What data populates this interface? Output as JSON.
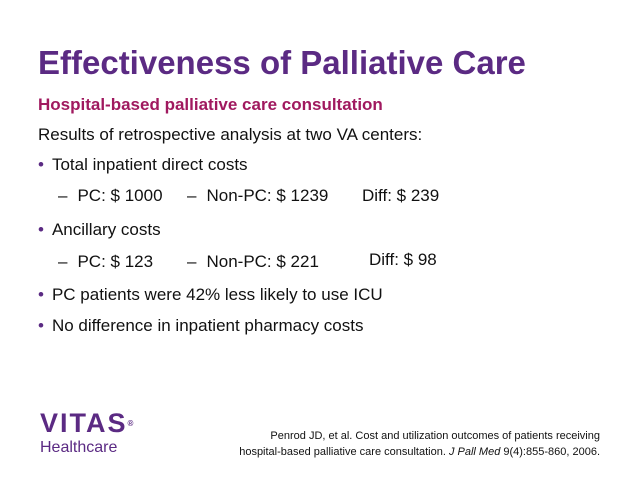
{
  "slide": {
    "title": "Effectiveness of Palliative Care",
    "subtitle": "Hospital-based palliative care consultation",
    "intro": "Results of retrospective analysis at two VA centers:",
    "bullet_marker": "•",
    "dash_marker": "–",
    "bullets": [
      {
        "text": "Total inpatient direct costs",
        "sub": {
          "pc": "PC: $ 1000",
          "nonpc": "Non-PC: $ 1239",
          "diff": "Diff: $ 239"
        }
      },
      {
        "text": "Ancillary costs",
        "sub": {
          "pc": "PC: $ 123",
          "nonpc": "Non-PC: $ 221",
          "diff": "Diff: $ 98"
        }
      },
      {
        "text": "PC patients were 42% less likely to use ICU"
      },
      {
        "text": "No difference in inpatient pharmacy costs"
      }
    ]
  },
  "logo": {
    "top": "VITAS",
    "registered": "®",
    "bottom": "Healthcare"
  },
  "citation": {
    "line1": "Penrod JD, et al. Cost and utilization outcomes of patients receiving",
    "line2_prefix": "hospital-based palliative care consultation. ",
    "journal": "J Pall Med",
    "line2_suffix": " 9(4):855-860, 2006."
  },
  "colors": {
    "title": "#5b2a83",
    "subtitle": "#a0195f",
    "text": "#111111",
    "logo": "#5b2a83"
  }
}
